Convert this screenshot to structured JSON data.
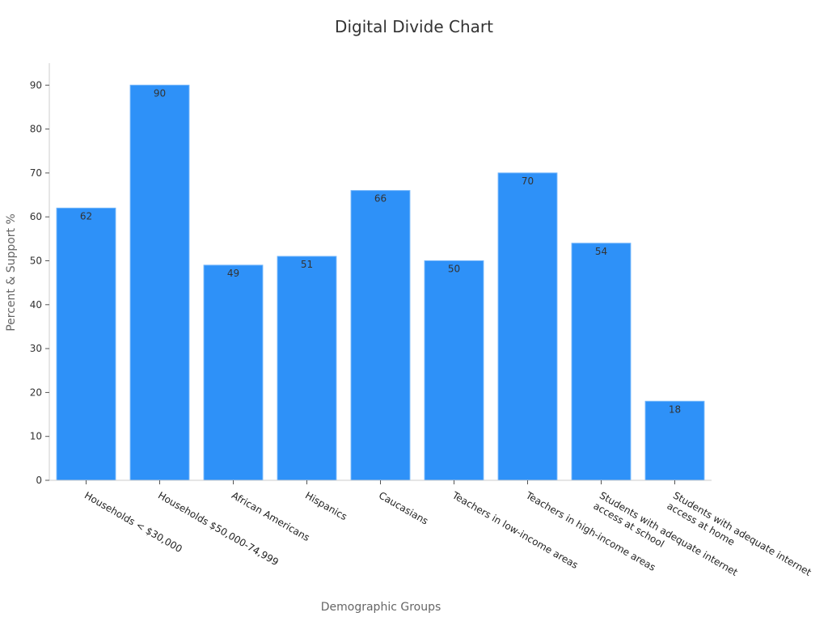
{
  "chart_data": {
    "type": "bar",
    "title": "Digital Divide Chart",
    "xlabel": "Demographic Groups",
    "ylabel": "Percent & Support %",
    "ylim": [
      0,
      95
    ],
    "yticks": [
      0,
      10,
      20,
      30,
      40,
      50,
      60,
      70,
      80,
      90
    ],
    "grid": false,
    "legend": "none",
    "categories": [
      "Households < $30,000",
      "Households $50,000-74,999",
      "African Americans",
      "Hispanics",
      "Caucasians",
      "Teachers in low-income areas",
      "Teachers in high-income areas",
      "Students with adequate internet access at school",
      "Students with adequate internet access at home"
    ],
    "category_lines": [
      [
        "Households < $30,000"
      ],
      [
        "Households $50,000-74,999"
      ],
      [
        "African Americans"
      ],
      [
        "Hispanics"
      ],
      [
        "Caucasians"
      ],
      [
        "Teachers in low-income areas"
      ],
      [
        "Teachers in high-income areas"
      ],
      [
        "Students with adequate internet",
        "access at school"
      ],
      [
        "Students with adequate internet",
        "access at home"
      ]
    ],
    "values": [
      62,
      90,
      49,
      51,
      66,
      50,
      70,
      54,
      18
    ],
    "colors": {
      "bar": "#2e91f8",
      "bar_edge": "#6fb4fb"
    }
  }
}
